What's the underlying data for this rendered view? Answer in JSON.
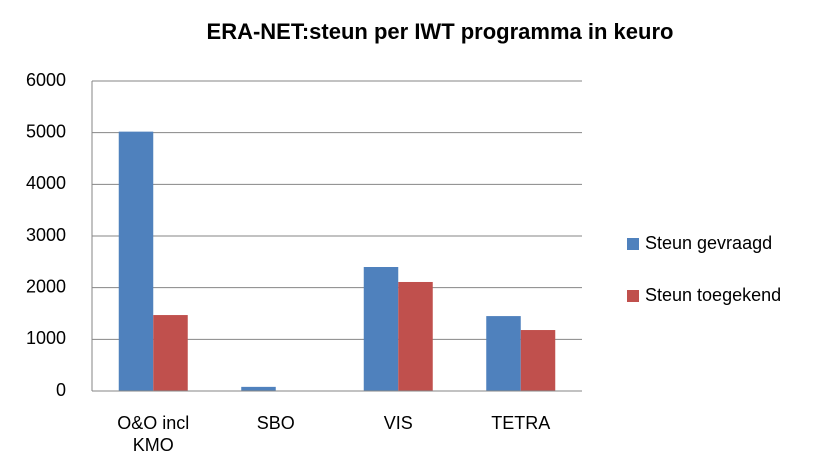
{
  "chart_data": {
    "type": "bar",
    "title": "ERA-NET:steun per IWT programma  in keuro",
    "categories": [
      "O&O incl KMO",
      "SBO",
      "VIS",
      "TETRA"
    ],
    "series": [
      {
        "name": "Steun gevraagd",
        "color": "#4f81bd",
        "values": [
          5020,
          80,
          2400,
          1450
        ]
      },
      {
        "name": "Steun toegekend",
        "color": "#c0504d",
        "values": [
          1470,
          0,
          2110,
          1180
        ]
      }
    ],
    "ylim": [
      0,
      6000
    ],
    "yticks": [
      0,
      1000,
      2000,
      3000,
      4000,
      5000,
      6000
    ],
    "grid": true,
    "legend": "right"
  }
}
